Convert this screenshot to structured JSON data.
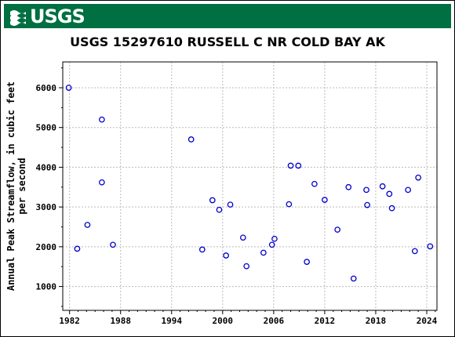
{
  "header": {
    "logo_text": "USGS",
    "brand_color": "#006f41"
  },
  "chart_data": {
    "type": "scatter",
    "title": "USGS 15297610 RUSSELL C NR COLD BAY AK",
    "xlabel": "",
    "ylabel_line1": "Annual Peak Streamflow, in cubic feet",
    "ylabel_line2": "per second",
    "xlim": [
      1981.2,
      2025.2
    ],
    "ylim": [
      400,
      6650
    ],
    "xticks": [
      1982,
      1988,
      1994,
      2000,
      2006,
      2012,
      2018,
      2024
    ],
    "xtick_labels": [
      "1982",
      "1988",
      "1994",
      "2000",
      "2006",
      "2012",
      "2018",
      "2024"
    ],
    "yticks": [
      1000,
      2000,
      3000,
      4000,
      5000,
      6000
    ],
    "ytick_labels": [
      "1000",
      "2000",
      "3000",
      "4000",
      "5000",
      "6000"
    ],
    "grid": true,
    "marker_color": "#0000cc",
    "points": [
      {
        "x": 1981.9,
        "y": 6000
      },
      {
        "x": 1982.9,
        "y": 1950
      },
      {
        "x": 1984.1,
        "y": 2550
      },
      {
        "x": 1985.8,
        "y": 5200
      },
      {
        "x": 1985.8,
        "y": 3620
      },
      {
        "x": 1987.1,
        "y": 2050
      },
      {
        "x": 1996.3,
        "y": 4700
      },
      {
        "x": 1997.6,
        "y": 1930
      },
      {
        "x": 1998.8,
        "y": 3170
      },
      {
        "x": 1999.6,
        "y": 2930
      },
      {
        "x": 2000.4,
        "y": 1780
      },
      {
        "x": 2000.9,
        "y": 3060
      },
      {
        "x": 2002.4,
        "y": 2230
      },
      {
        "x": 2002.8,
        "y": 1510
      },
      {
        "x": 2004.8,
        "y": 1850
      },
      {
        "x": 2005.8,
        "y": 2050
      },
      {
        "x": 2006.1,
        "y": 2200
      },
      {
        "x": 2007.8,
        "y": 3070
      },
      {
        "x": 2008.0,
        "y": 4040
      },
      {
        "x": 2008.9,
        "y": 4040
      },
      {
        "x": 2009.9,
        "y": 1620
      },
      {
        "x": 2010.8,
        "y": 3580
      },
      {
        "x": 2012.0,
        "y": 3180
      },
      {
        "x": 2013.5,
        "y": 2430
      },
      {
        "x": 2014.8,
        "y": 3500
      },
      {
        "x": 2015.4,
        "y": 1200
      },
      {
        "x": 2016.9,
        "y": 3430
      },
      {
        "x": 2017.0,
        "y": 3050
      },
      {
        "x": 2018.8,
        "y": 3520
      },
      {
        "x": 2019.6,
        "y": 3330
      },
      {
        "x": 2019.9,
        "y": 2970
      },
      {
        "x": 2021.8,
        "y": 3430
      },
      {
        "x": 2022.6,
        "y": 1890
      },
      {
        "x": 2023.0,
        "y": 3740
      },
      {
        "x": 2024.4,
        "y": 2010
      }
    ]
  }
}
